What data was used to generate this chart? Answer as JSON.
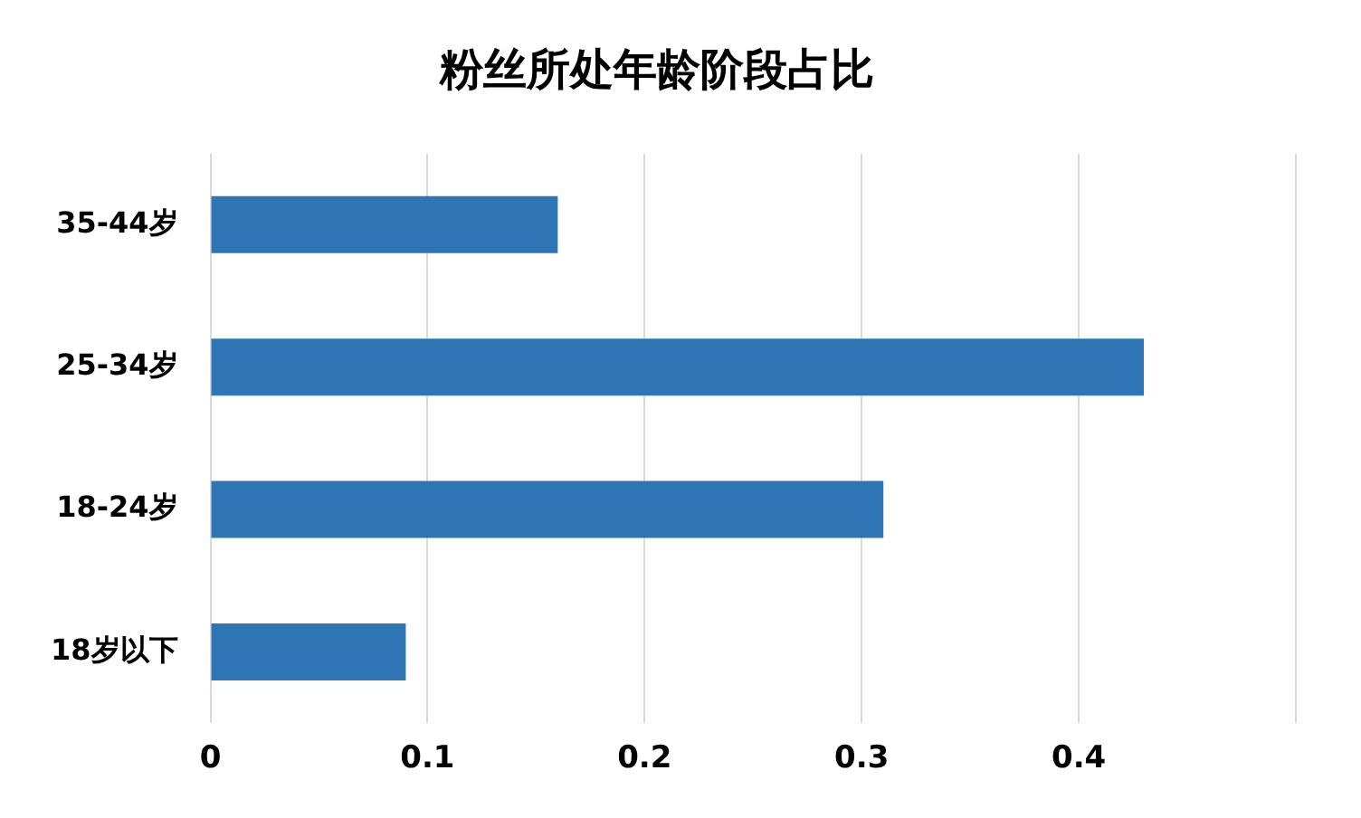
{
  "chart_data": {
    "type": "bar",
    "orientation": "horizontal",
    "title": "粉丝所处年龄阶段占比",
    "categories": [
      "35-44岁",
      "25-34岁",
      "18-24岁",
      "18岁以下"
    ],
    "values": [
      0.16,
      0.43,
      0.31,
      0.09
    ],
    "color": "#2e75b6",
    "xlim": [
      0,
      0.5
    ],
    "xticks": [
      0,
      0.1,
      0.2,
      0.3,
      0.4,
      {
        "value": 0.5,
        "label": null
      }
    ],
    "grid": "x",
    "legend": false
  }
}
